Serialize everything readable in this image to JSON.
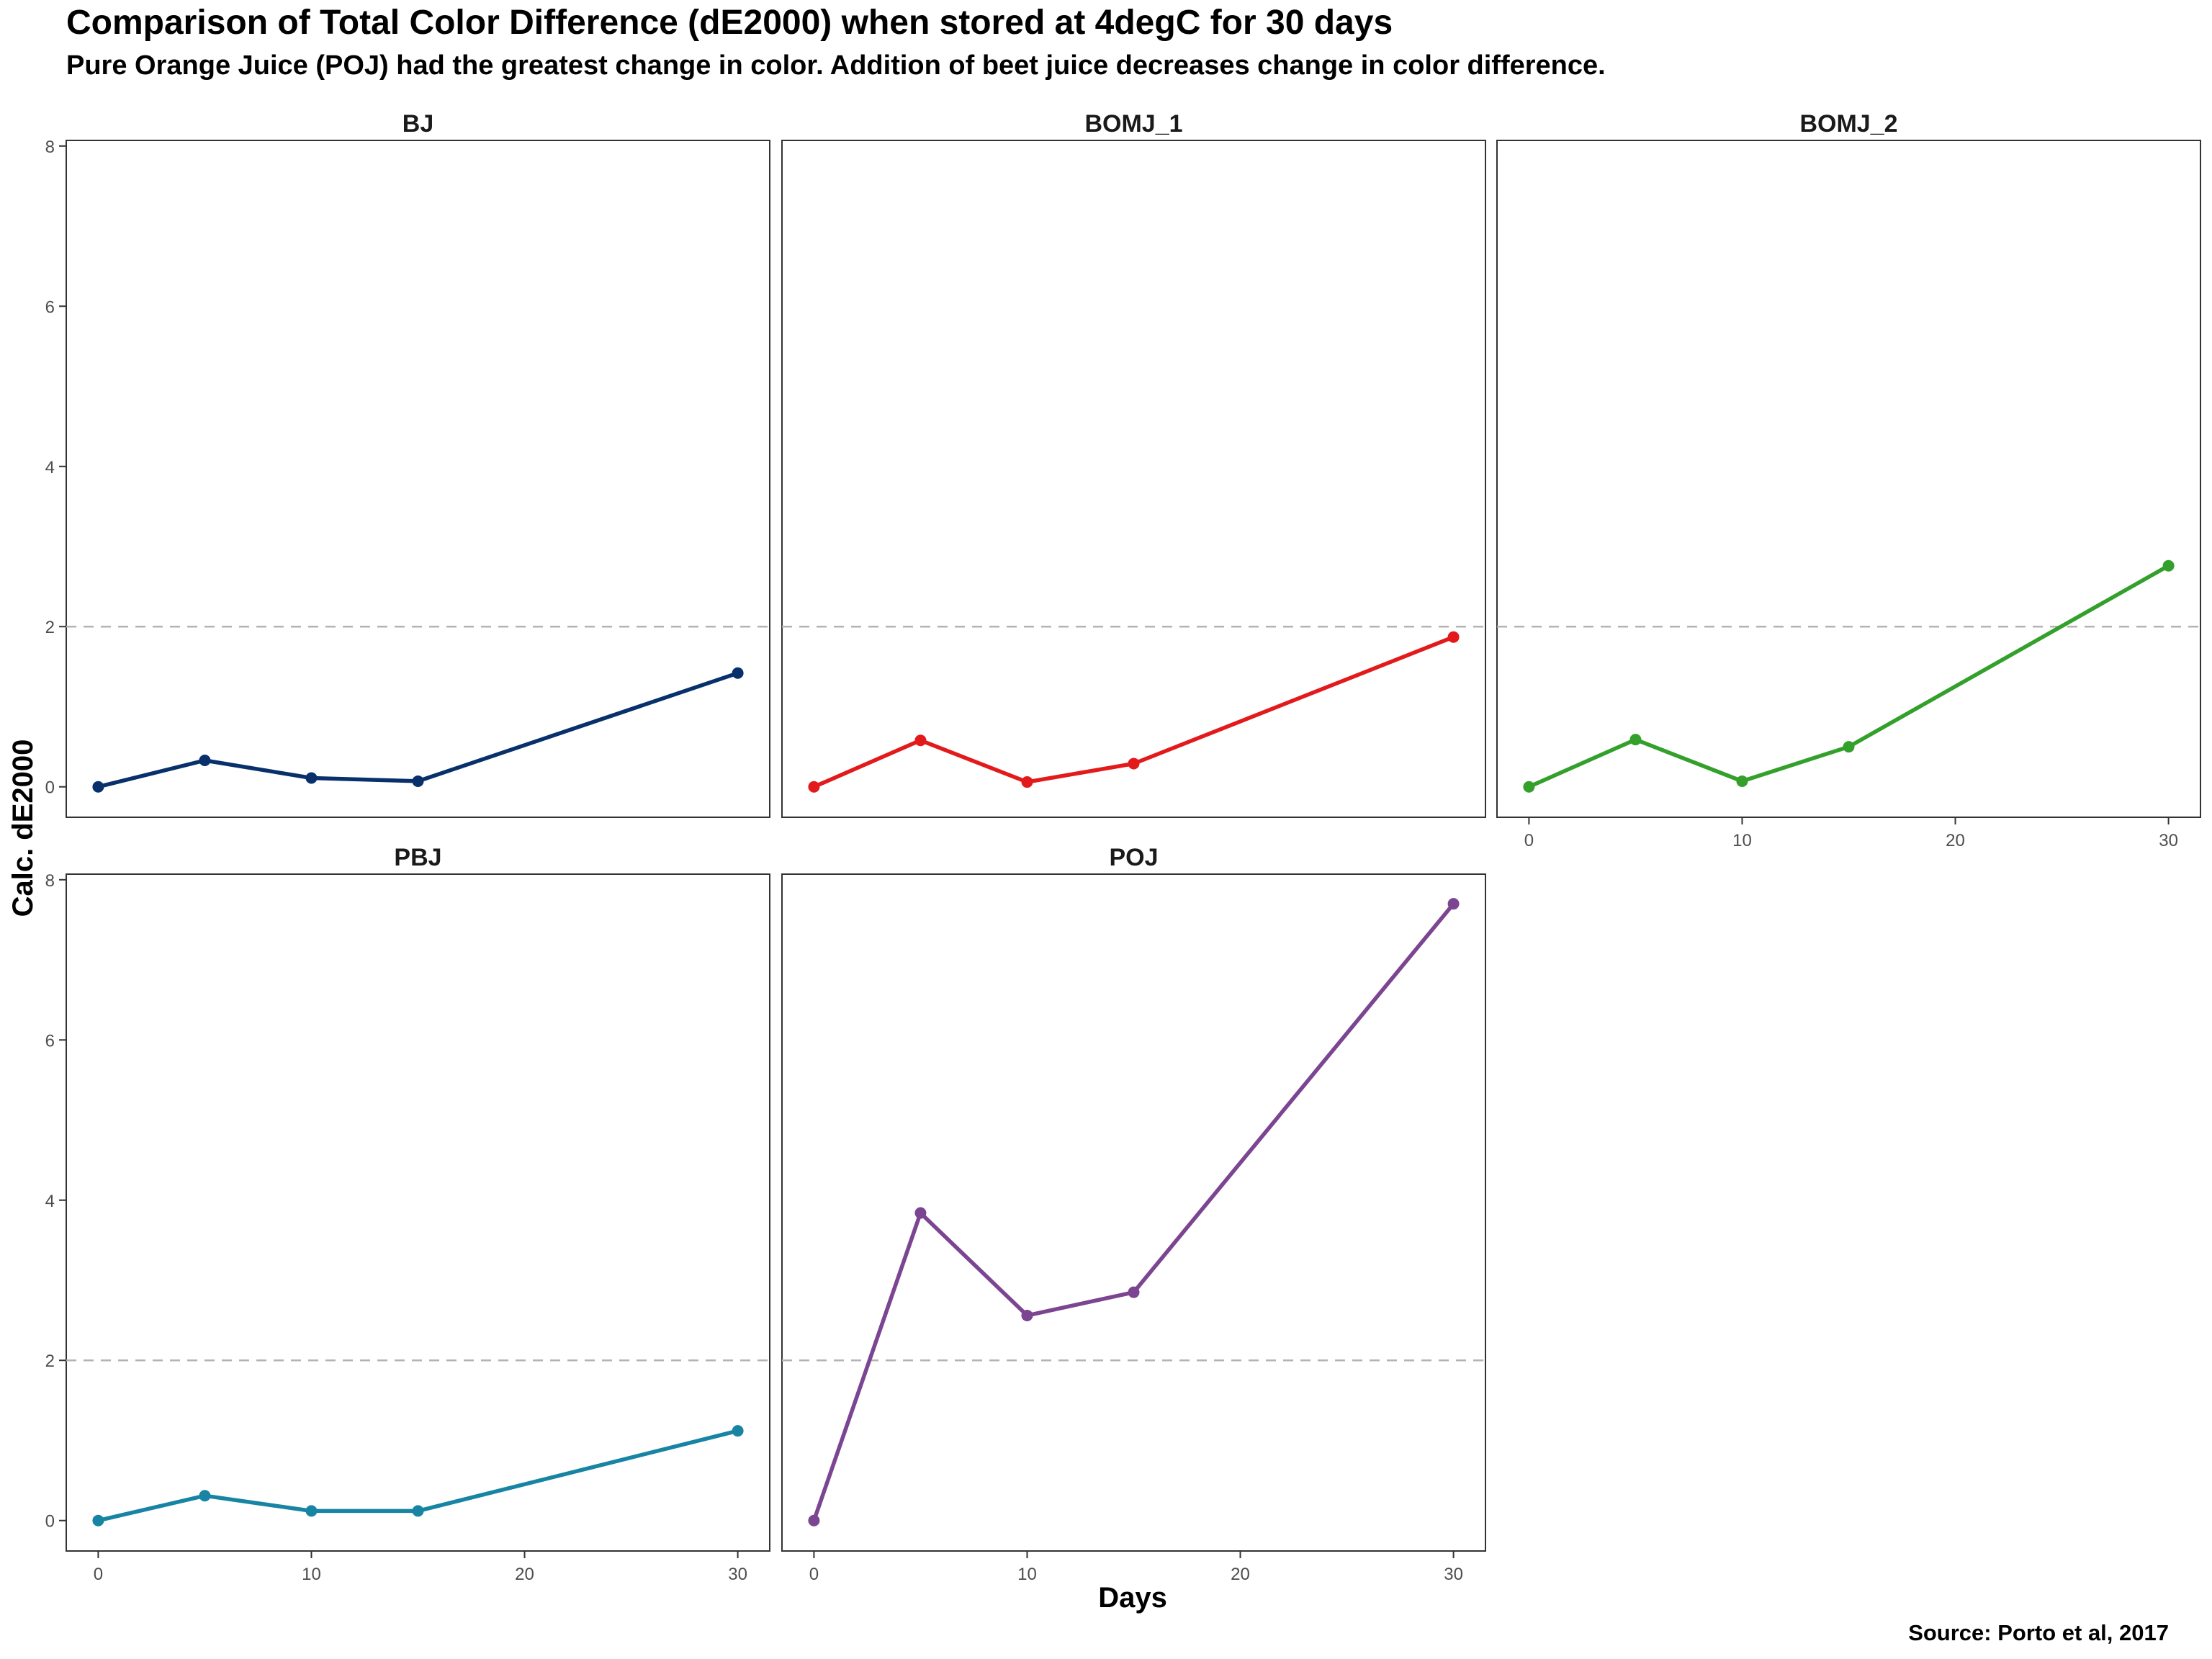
{
  "chart_data": {
    "type": "line",
    "title": "Comparison of Total Color Difference (dE2000) when stored at 4degC for 30 days",
    "subtitle": "Pure Orange Juice (POJ) had the greatest change in color. Addition of beet juice decreases change in color difference.",
    "xlabel": "Days",
    "ylabel": "Calc. dE2000",
    "caption": "Source: Porto et al, 2017",
    "x": [
      0,
      5,
      10,
      15,
      30
    ],
    "xlim": [
      -1.5,
      31.5
    ],
    "ylim": [
      -0.38,
      8.07
    ],
    "x_ticks": [
      "0",
      "10",
      "20",
      "30"
    ],
    "y_ticks": [
      "0",
      "2",
      "4",
      "6",
      "8"
    ],
    "reference_line": {
      "y": 2,
      "style": "dashed",
      "color": "#b3b3b3"
    },
    "grid": false,
    "legend": "none",
    "series": [
      {
        "name": "BJ",
        "color": "#08306b",
        "values": [
          0,
          0.33,
          0.11,
          0.07,
          1.42
        ]
      },
      {
        "name": "BOMJ_1",
        "color": "#e31a1c",
        "values": [
          0,
          0.58,
          0.06,
          0.29,
          1.87
        ]
      },
      {
        "name": "BOMJ_2",
        "color": "#33a02c",
        "values": [
          0,
          0.59,
          0.07,
          0.5,
          2.76
        ]
      },
      {
        "name": "PBJ",
        "color": "#1784a3",
        "values": [
          0,
          0.31,
          0.12,
          0.12,
          1.12
        ]
      },
      {
        "name": "POJ",
        "color": "#7b4592",
        "values": [
          0,
          3.84,
          2.56,
          2.85,
          7.7
        ]
      }
    ]
  }
}
